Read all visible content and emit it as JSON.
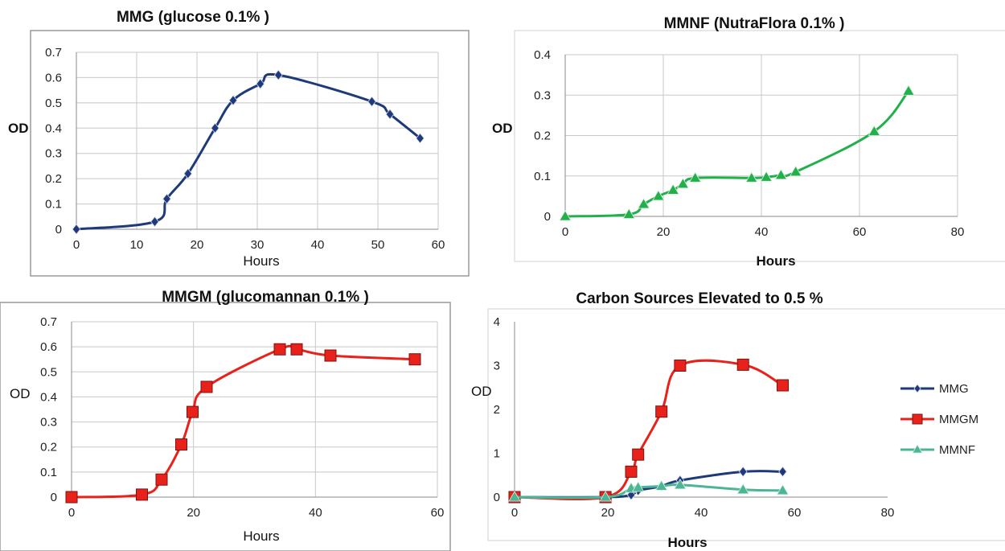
{
  "chart_data": [
    {
      "type": "line",
      "title": "MMG (glucose 0.1% )",
      "xlabel": "Hours",
      "ylabel": "OD",
      "xlim": [
        0,
        60
      ],
      "ylim": [
        0,
        0.7
      ],
      "xticks": [
        "0",
        "10",
        "20",
        "30",
        "40",
        "50",
        "60"
      ],
      "yticks": [
        "0",
        "0.1",
        "0.2",
        "0.3",
        "0.4",
        "0.5",
        "0.6",
        "0.7"
      ],
      "grid": true,
      "series": [
        {
          "color": "#1f3a7a",
          "marker": "diamond",
          "x": [
            0,
            13,
            15,
            18.5,
            23,
            26,
            30.5,
            33.5,
            49,
            52,
            57
          ],
          "y": [
            0,
            0.03,
            0.12,
            0.22,
            0.4,
            0.51,
            0.575,
            0.61,
            0.505,
            0.455,
            0.36
          ]
        }
      ]
    },
    {
      "type": "line",
      "title": "MMNF (NutraFlora 0.1% )",
      "xlabel": "Hours",
      "ylabel": "OD",
      "xlim": [
        0,
        80
      ],
      "ylim": [
        0,
        0.4
      ],
      "xticks": [
        "0",
        "20",
        "40",
        "60",
        "80"
      ],
      "yticks": [
        "0",
        "0.1",
        "0.2",
        "0.3",
        "0.4"
      ],
      "grid": true,
      "series": [
        {
          "color": "#22b04b",
          "marker": "triangle",
          "x": [
            0,
            13,
            16,
            19,
            22,
            24,
            26.5,
            38,
            41,
            44,
            47,
            63,
            70
          ],
          "y": [
            0,
            0.005,
            0.03,
            0.05,
            0.065,
            0.08,
            0.095,
            0.095,
            0.097,
            0.102,
            0.11,
            0.21,
            0.31
          ]
        }
      ]
    },
    {
      "type": "line",
      "title": "MMGM (glucomannan 0.1% )",
      "xlabel": "Hours",
      "ylabel": "OD",
      "xlim": [
        0,
        65
      ],
      "ylim": [
        0,
        0.7
      ],
      "xticks": [
        "0",
        "20",
        "40",
        "60"
      ],
      "yticks": [
        "0",
        "0.1",
        "0.2",
        "0.3",
        "0.4",
        "0.5",
        "0.6",
        "0.7"
      ],
      "grid": true,
      "series": [
        {
          "color": "#e8211b",
          "marker": "square",
          "x": [
            0,
            12.5,
            16,
            19.5,
            21.5,
            24,
            37,
            40,
            46,
            61
          ],
          "y": [
            0,
            0.01,
            0.07,
            0.21,
            0.34,
            0.44,
            0.59,
            0.59,
            0.565,
            0.55
          ]
        }
      ]
    },
    {
      "type": "line",
      "title": "Carbon Sources Elevated to 0.5 %",
      "xlabel": "Hours",
      "ylabel": "OD",
      "xlim": [
        0,
        80
      ],
      "ylim": [
        0,
        4
      ],
      "xticks": [
        "0",
        "20",
        "40",
        "60",
        "80"
      ],
      "yticks": [
        "0",
        "1",
        "2",
        "3",
        "4"
      ],
      "grid": false,
      "legend": "right",
      "series": [
        {
          "name": "MMG",
          "color": "#1f3a7a",
          "marker": "diamond",
          "x": [
            0,
            19.5,
            25,
            26.5,
            31.5,
            35.5,
            49,
            57.5
          ],
          "y": [
            0,
            0,
            0.05,
            0.15,
            0.25,
            0.38,
            0.58,
            0.58
          ]
        },
        {
          "name": "MMGM",
          "color": "#e8211b",
          "marker": "square",
          "x": [
            0,
            19.5,
            25,
            26.5,
            31.5,
            35.5,
            49,
            57.5
          ],
          "y": [
            0,
            0,
            0.58,
            0.97,
            1.95,
            3.0,
            3.02,
            2.55
          ]
        },
        {
          "name": "MMNF",
          "color": "#4bb596",
          "marker": "triangle",
          "x": [
            0,
            19.5,
            25,
            26.5,
            31.5,
            35.5,
            49,
            57.5
          ],
          "y": [
            0,
            0,
            0.2,
            0.22,
            0.25,
            0.28,
            0.17,
            0.15
          ]
        }
      ]
    }
  ]
}
